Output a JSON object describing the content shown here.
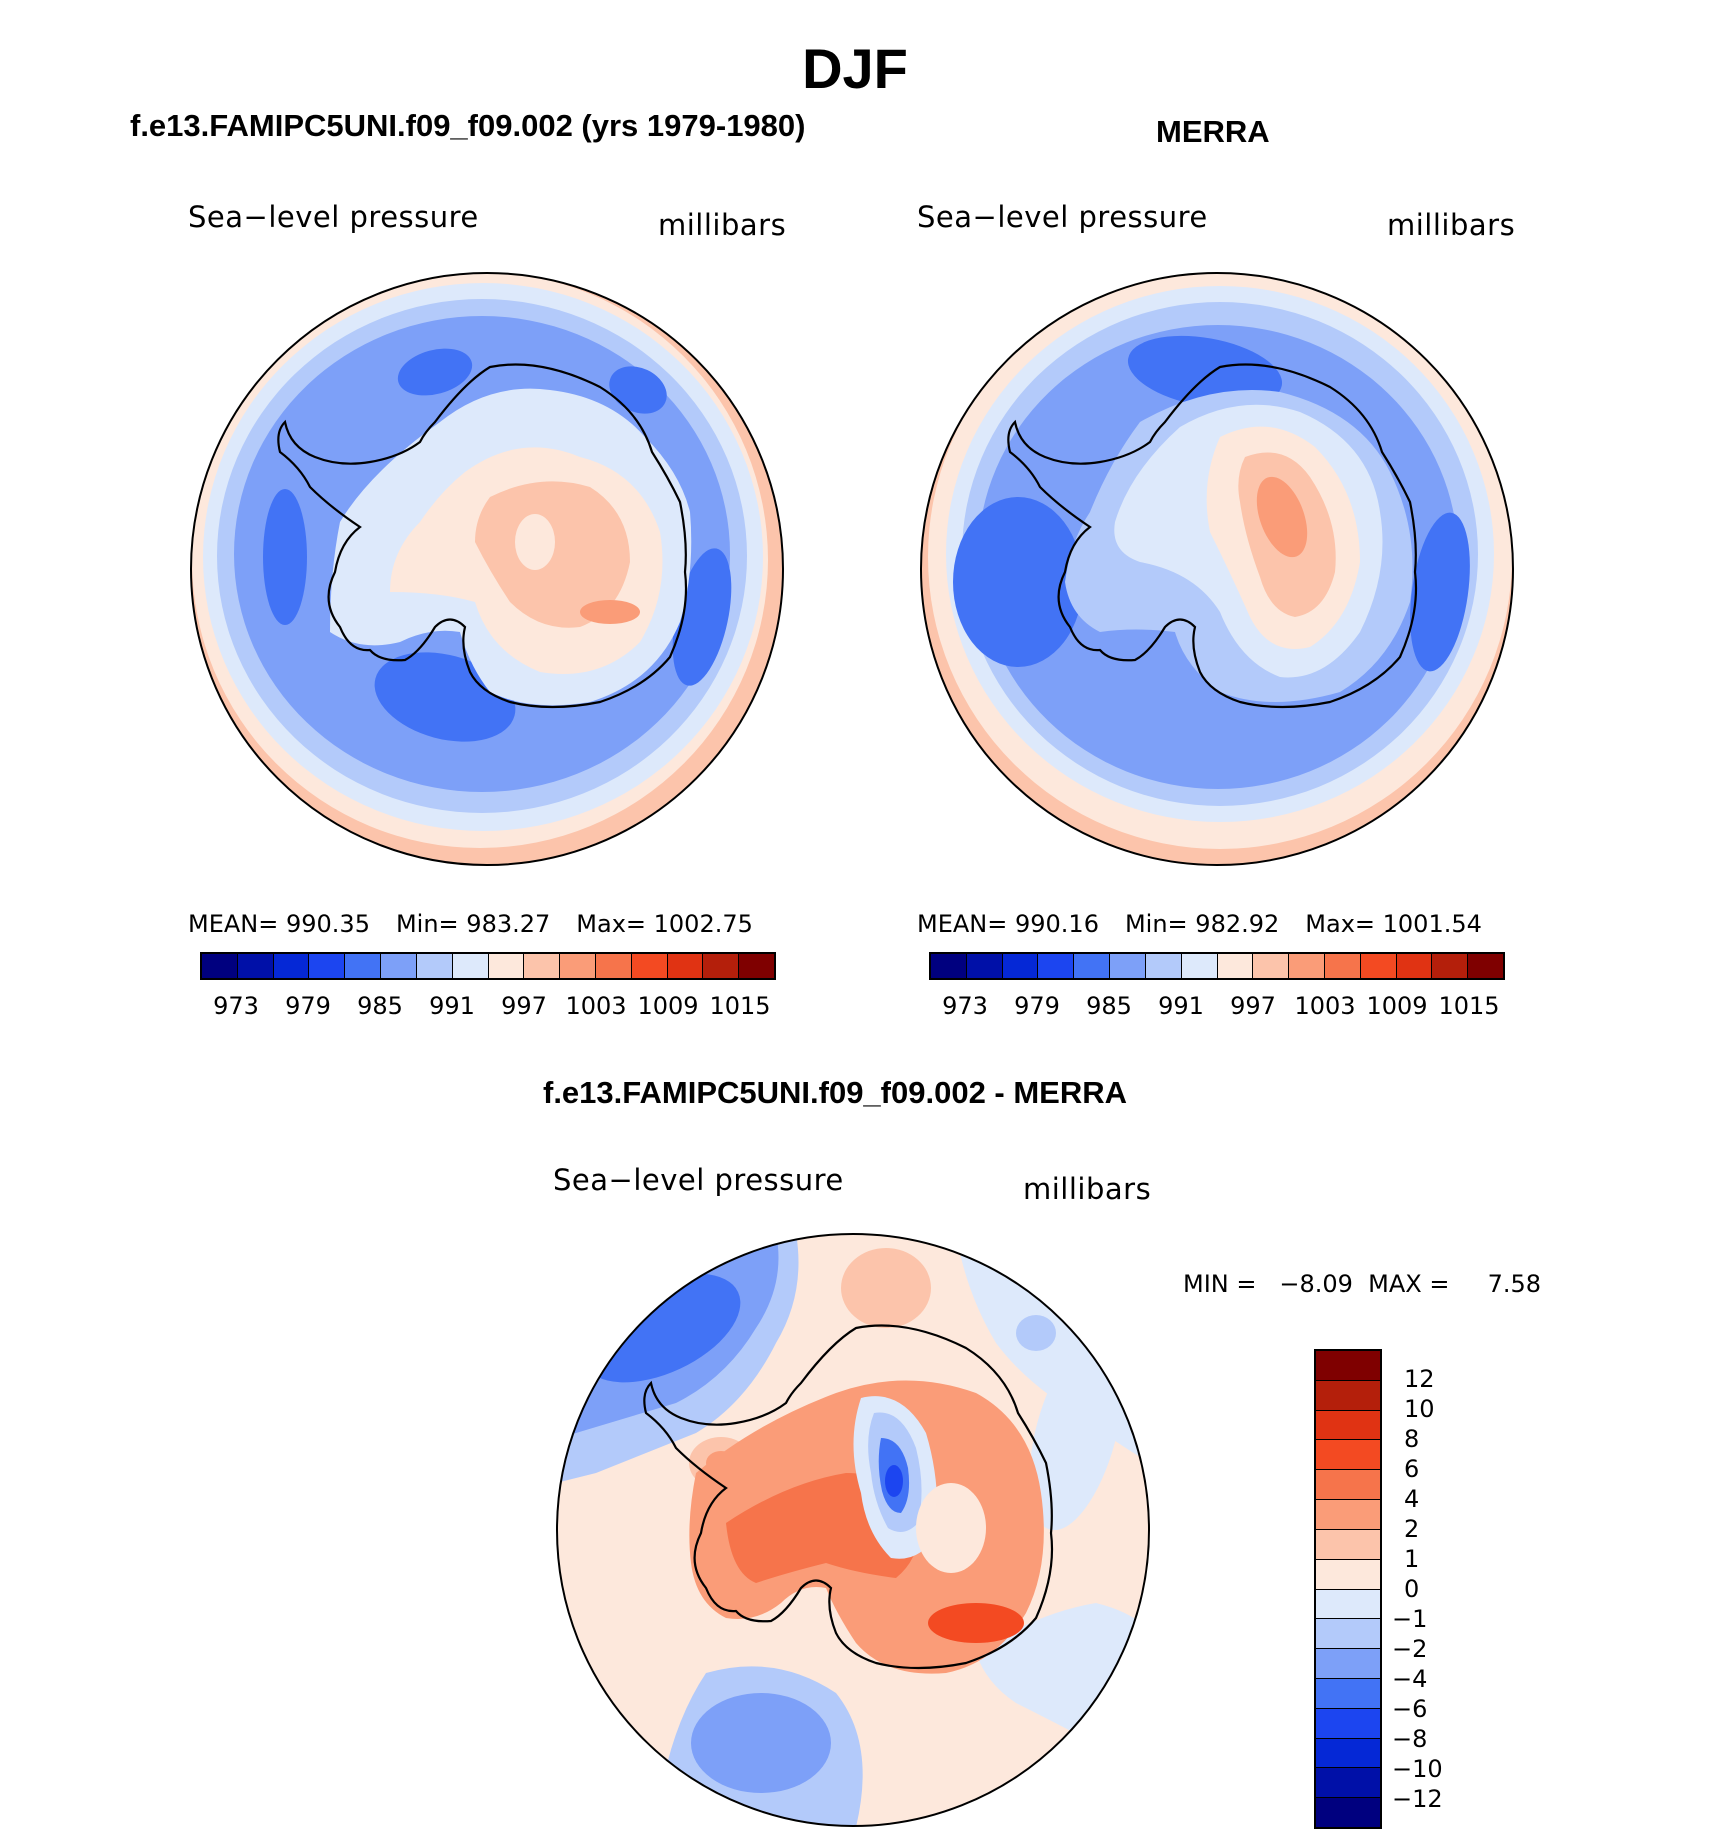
{
  "title": "DJF",
  "panels": {
    "model": {
      "title": "f.e13.FAMIPC5UNI.f09_f09.002 (yrs 1979-1980)",
      "variable": "Sea−level pressure",
      "units": "millibars",
      "stats": {
        "mean": "MEAN= 990.35",
        "min": "Min= 983.27",
        "max": "Max= 1002.75"
      }
    },
    "obs": {
      "title": "MERRA",
      "variable": "Sea−level pressure",
      "units": "millibars",
      "stats": {
        "mean": "MEAN= 990.16",
        "min": "Min= 982.92",
        "max": "Max= 1001.54"
      }
    },
    "diff": {
      "title": "f.e13.FAMIPC5UNI.f09_f09.002 - MERRA",
      "variable": "Sea−level pressure",
      "units": "millibars",
      "minmax": "MIN =   −8.09  MAX =     7.58"
    }
  },
  "colorbar_levels": {
    "colors": [
      "#00007f",
      "#0010a8",
      "#0528d6",
      "#1c45f0",
      "#4273f5",
      "#7da0f8",
      "#b3cafa",
      "#dde9fb",
      "#fde8dc",
      "#fcc4ab",
      "#fa9c78",
      "#f6744b",
      "#f34a22",
      "#e03313",
      "#b41f0b",
      "#7f0000"
    ],
    "tick_labels": [
      "973",
      "979",
      "985",
      "991",
      "997",
      "1003",
      "1009",
      "1015"
    ]
  },
  "diff_colorbar": {
    "colors": [
      "#7f0000",
      "#b41f0b",
      "#e03313",
      "#f34a22",
      "#f6744b",
      "#fa9c78",
      "#fcc4ab",
      "#fde8dc",
      "#dde9fb",
      "#b3cafa",
      "#7da0f8",
      "#4273f5",
      "#1c45f0",
      "#0528d6",
      "#0010a8",
      "#00007f"
    ],
    "tick_labels": [
      "12",
      "10",
      "8",
      "6",
      "4",
      "2",
      "1",
      "0",
      "−1",
      "−2",
      "−4",
      "−6",
      "−8",
      "−10",
      "−12"
    ]
  }
}
